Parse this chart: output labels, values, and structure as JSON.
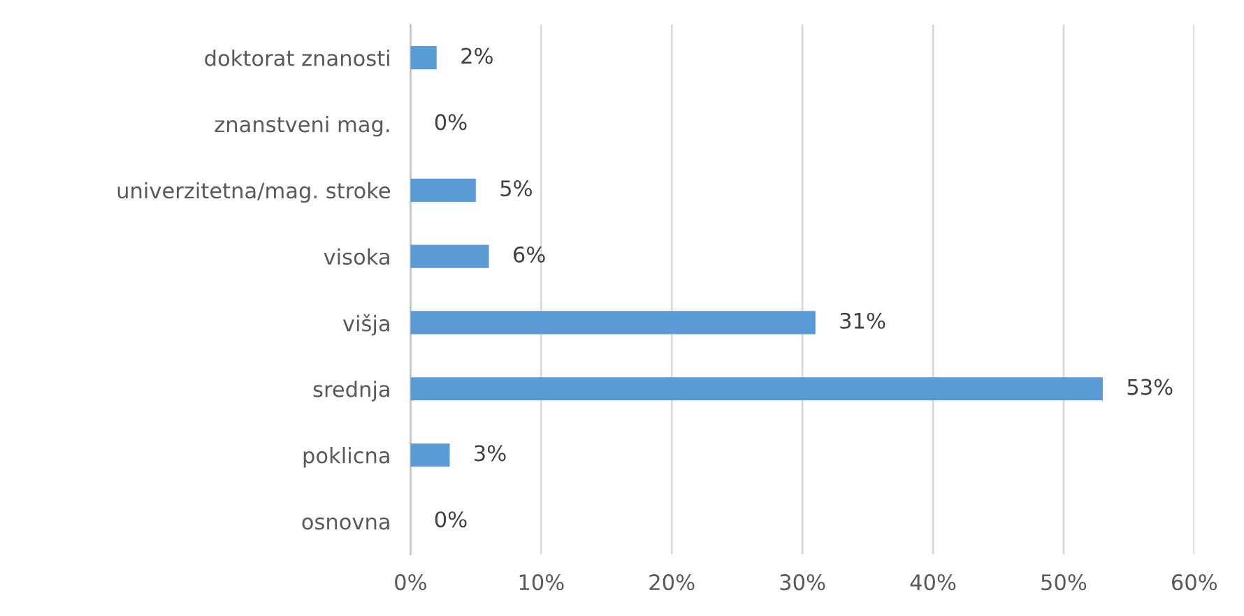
{
  "chart_data": {
    "type": "bar",
    "orientation": "horizontal",
    "categories": [
      "doktorat znanosti",
      "znanstveni mag.",
      "univerzitetna/mag. stroke",
      "visoka",
      "višja",
      "srednja",
      "poklicna",
      "osnovna"
    ],
    "values": [
      2,
      0,
      5,
      6,
      31,
      53,
      3,
      0
    ],
    "value_labels": [
      "2%",
      "0%",
      "5%",
      "6%",
      "31%",
      "53%",
      "3%",
      "0%"
    ],
    "color": "#5b9bd5",
    "xlim": [
      0,
      60
    ],
    "xticks": [
      {
        "value": 0,
        "label": "0%"
      },
      {
        "value": 10,
        "label": "10%"
      },
      {
        "value": 20,
        "label": "20%"
      },
      {
        "value": 30,
        "label": "30%"
      },
      {
        "value": 40,
        "label": "40%"
      },
      {
        "value": 50,
        "label": "50%"
      },
      {
        "value": 60,
        "label": "60%"
      }
    ],
    "grid": "x"
  }
}
